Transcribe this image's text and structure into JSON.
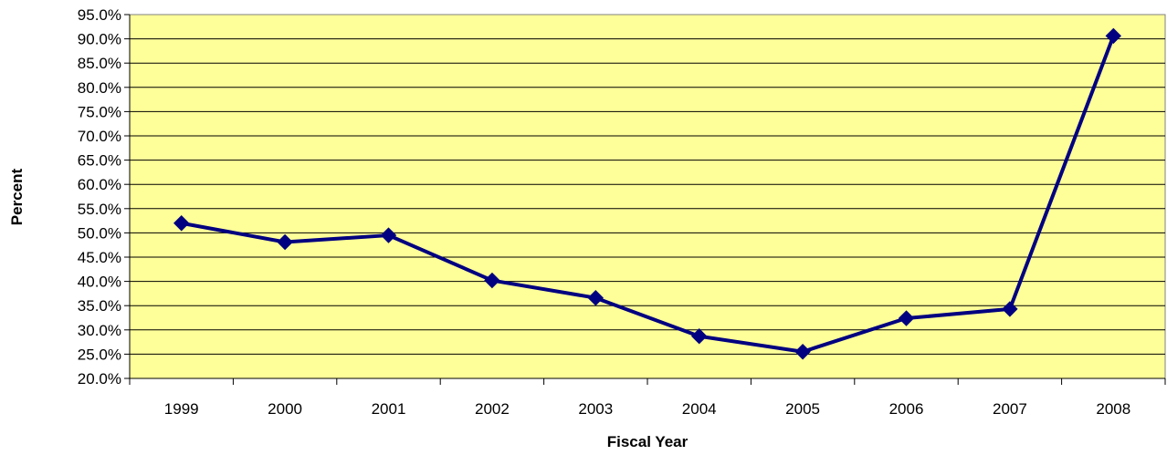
{
  "chart_data": {
    "type": "line",
    "title": "",
    "xlabel": "Fiscal Year",
    "ylabel": "Percent",
    "categories": [
      "1999",
      "2000",
      "2001",
      "2002",
      "2003",
      "2004",
      "2005",
      "2006",
      "2007",
      "2008"
    ],
    "series": [
      {
        "values": [
          52.0,
          48.1,
          49.5,
          40.2,
          36.6,
          28.7,
          25.5,
          32.4,
          34.3,
          90.6
        ],
        "color": "#000080",
        "marker": "diamond"
      }
    ],
    "ylim": [
      20,
      95
    ],
    "y_tick_step": 5,
    "y_tick_labels": [
      "20.0%",
      "25.0%",
      "30.0%",
      "35.0%",
      "40.0%",
      "45.0%",
      "50.0%",
      "55.0%",
      "60.0%",
      "65.0%",
      "70.0%",
      "75.0%",
      "80.0%",
      "85.0%",
      "90.0%",
      "95.0%"
    ],
    "grid": true,
    "legend": "none",
    "plot_background": "#FFFF99"
  }
}
